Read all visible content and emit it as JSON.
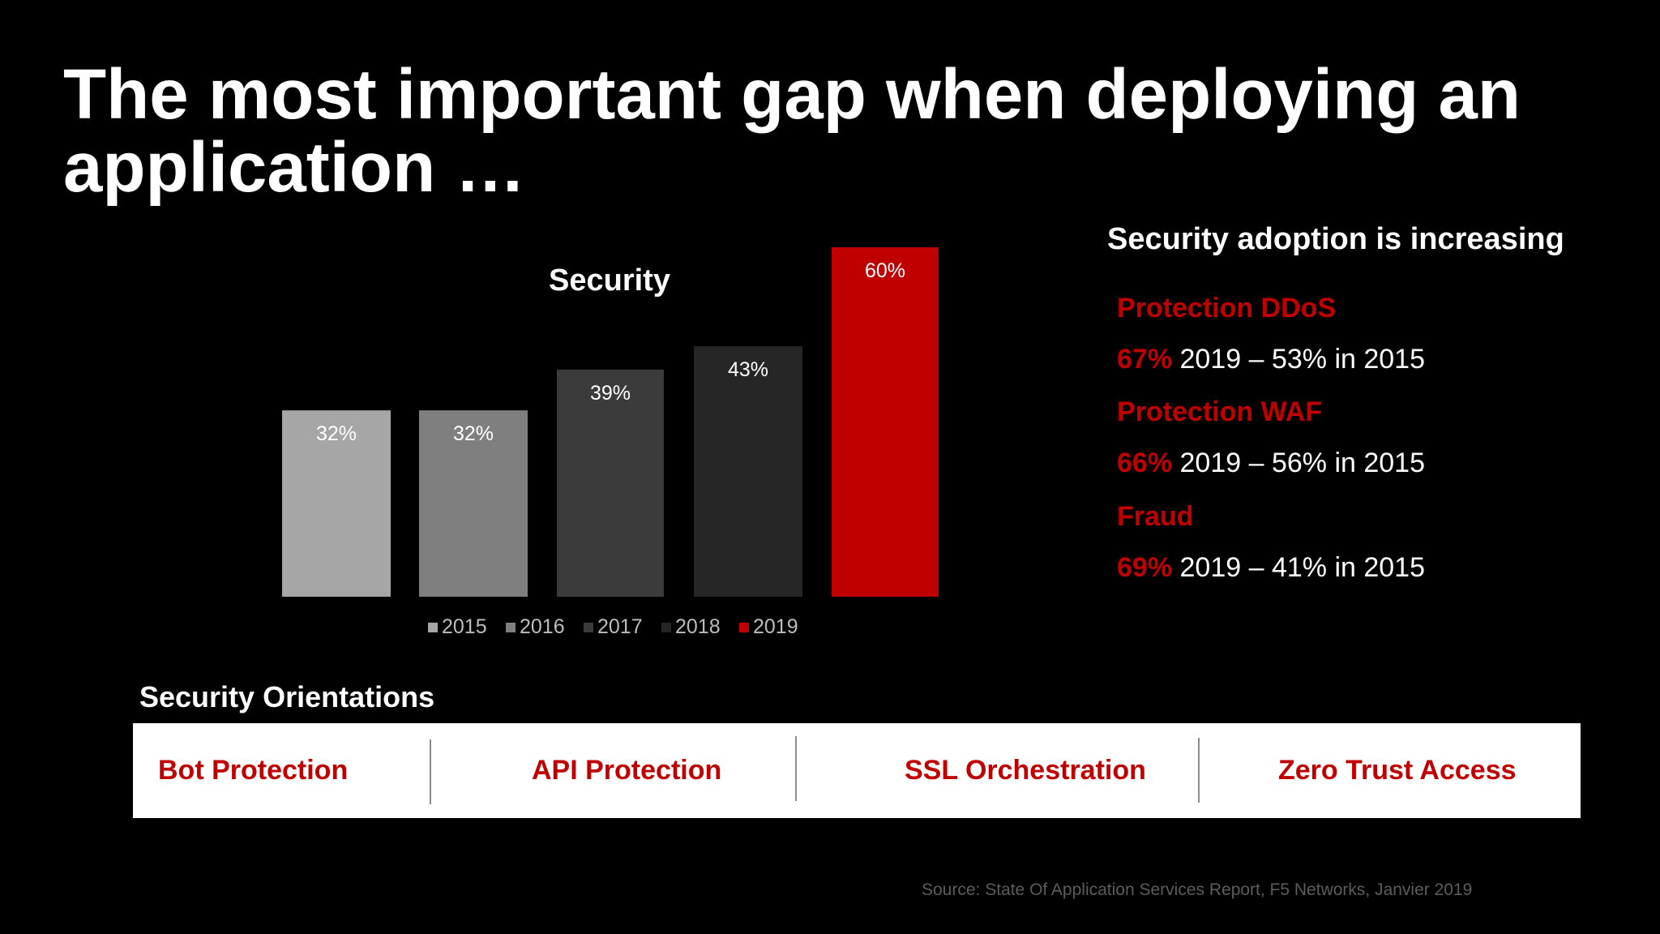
{
  "title": "The most important gap when deploying an application …",
  "chart_data": {
    "type": "bar",
    "title": "Security",
    "categories": [
      "2015",
      "2016",
      "2017",
      "2018",
      "2019"
    ],
    "values": [
      32,
      32,
      39,
      43,
      60
    ],
    "value_labels": [
      "32%",
      "32%",
      "39%",
      "43%",
      "60%"
    ],
    "colors": [
      "#a6a6a6",
      "#7f7f7f",
      "#3b3b3b",
      "#262626",
      "#c00000"
    ],
    "legend": [
      "2015",
      "2016",
      "2017",
      "2018",
      "2019"
    ],
    "legend_position": "bottom",
    "ylim": [
      0,
      60
    ],
    "grid": false
  },
  "right_panel": {
    "heading": "Security adoption is increasing",
    "items": [
      {
        "name": "Protection DDoS",
        "pct": "67%",
        "rest": " 2019 – 53% in 2015"
      },
      {
        "name": "Protection WAF",
        "pct": "66%",
        "rest": " 2019 – 56% in 2015"
      },
      {
        "name": "Fraud",
        "pct": "69%",
        "rest": " 2019 – 41% in 2015"
      }
    ]
  },
  "orientations": {
    "heading": "Security Orientations",
    "items": [
      "Bot Protection",
      "API Protection",
      "SSL Orchestration",
      "Zero Trust Access"
    ]
  },
  "source": "Source: State Of Application Services Report, F5 Networks, Janvier 2019",
  "colors": {
    "accent": "#c00000",
    "background": "#000000"
  }
}
